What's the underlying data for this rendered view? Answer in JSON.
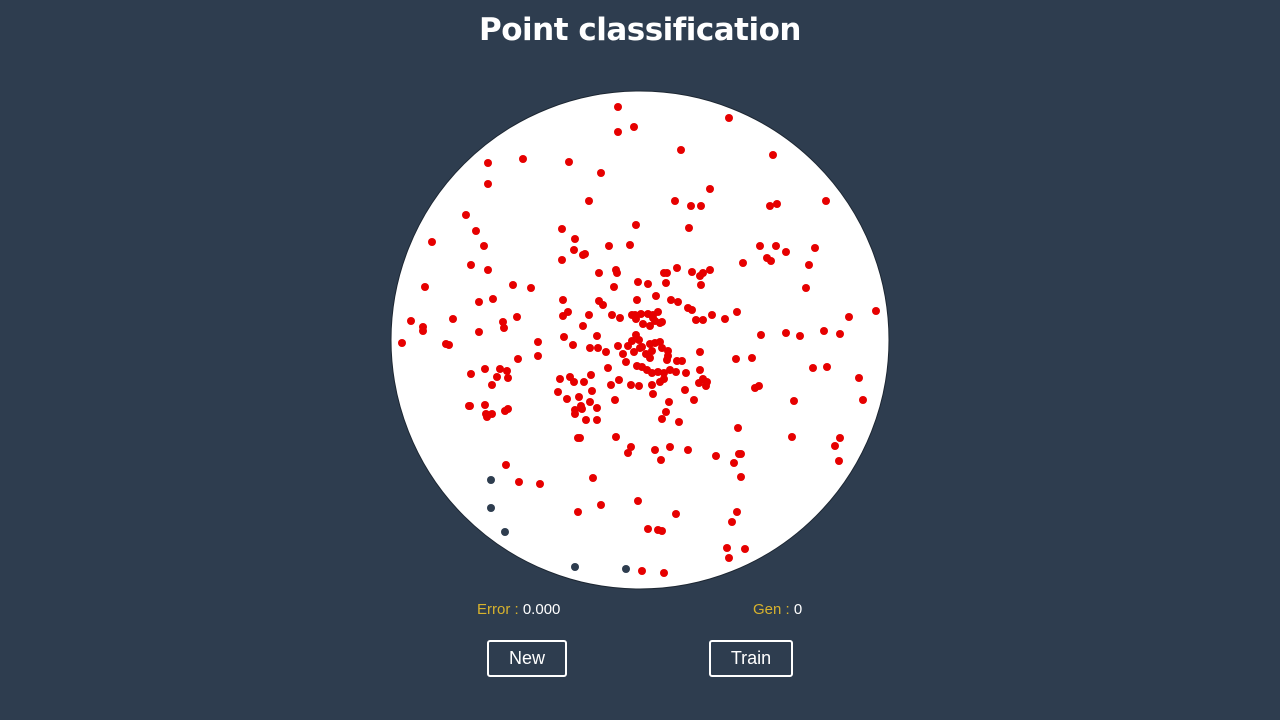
{
  "title": "Point classification",
  "stats": {
    "error_label": "Error :",
    "error_value": "0.000",
    "gen_label": "Gen :",
    "gen_value": "0"
  },
  "buttons": {
    "new_label": "New",
    "train_label": "Train"
  },
  "colors": {
    "background": "#2e3d4f",
    "plot_background": "#ffffff",
    "class_a": "#e60000",
    "class_b": "#2e3d4f",
    "label": "#d7b22d"
  },
  "chart_data": {
    "type": "scatter",
    "xlim": [
      -250,
      250
    ],
    "ylim": [
      -250,
      250
    ],
    "series": [
      {
        "class": "a",
        "color": "#e60000",
        "points": [
          [
            -22,
            233
          ],
          [
            -22,
            208
          ],
          [
            -6,
            213
          ],
          [
            89,
            222
          ],
          [
            41,
            190
          ],
          [
            133,
            185
          ],
          [
            -152,
            177
          ],
          [
            -117,
            181
          ],
          [
            -71,
            178
          ],
          [
            -39,
            167
          ],
          [
            -152,
            156
          ],
          [
            70,
            151
          ],
          [
            -51,
            139
          ],
          [
            35,
            139
          ],
          [
            51,
            134
          ],
          [
            61,
            134
          ],
          [
            130,
            134
          ],
          [
            137,
            136
          ],
          [
            186,
            139
          ],
          [
            -174,
            125
          ],
          [
            -164,
            109
          ],
          [
            -78,
            111
          ],
          [
            -4,
            115
          ],
          [
            49,
            112
          ],
          [
            -208,
            98
          ],
          [
            -156,
            94
          ],
          [
            -65,
            101
          ],
          [
            -31,
            94
          ],
          [
            -10,
            95
          ],
          [
            -66,
            90
          ],
          [
            -57,
            85
          ],
          [
            120,
            94
          ],
          [
            136,
            94
          ],
          [
            146,
            88
          ],
          [
            175,
            92
          ],
          [
            -169,
            75
          ],
          [
            -78,
            80
          ],
          [
            -55,
            86
          ],
          [
            103,
            77
          ],
          [
            127,
            82
          ],
          [
            131,
            79
          ],
          [
            169,
            75
          ],
          [
            -152,
            70
          ],
          [
            -24,
            70
          ],
          [
            -23,
            67
          ],
          [
            24,
            67
          ],
          [
            27,
            67
          ],
          [
            37,
            72
          ],
          [
            52,
            68
          ],
          [
            63,
            67
          ],
          [
            70,
            70
          ],
          [
            -41,
            67
          ],
          [
            -2,
            58
          ],
          [
            60,
            64
          ],
          [
            61,
            55
          ],
          [
            -215,
            53
          ],
          [
            -127,
            55
          ],
          [
            -109,
            52
          ],
          [
            -26,
            53
          ],
          [
            8,
            56
          ],
          [
            26,
            57
          ],
          [
            166,
            52
          ],
          [
            -161,
            38
          ],
          [
            -147,
            41
          ],
          [
            -77,
            40
          ],
          [
            -41,
            39
          ],
          [
            -37,
            35
          ],
          [
            -3,
            40
          ],
          [
            16,
            44
          ],
          [
            31,
            40
          ],
          [
            38,
            38
          ],
          [
            48,
            32
          ],
          [
            52,
            30
          ],
          [
            -72,
            28
          ],
          [
            -51,
            25
          ],
          [
            -5,
            25
          ],
          [
            13,
            25
          ],
          [
            18,
            28
          ],
          [
            56,
            20
          ],
          [
            -229,
            19
          ],
          [
            -137,
            18
          ],
          [
            -123,
            23
          ],
          [
            -77,
            24
          ],
          [
            -28,
            25
          ],
          [
            -20,
            22
          ],
          [
            -8,
            25
          ],
          [
            1,
            26
          ],
          [
            8,
            26
          ],
          [
            13,
            22
          ],
          [
            20,
            17
          ],
          [
            -217,
            13
          ],
          [
            -217,
            9
          ],
          [
            -187,
            21
          ],
          [
            -161,
            8
          ],
          [
            -136,
            12
          ],
          [
            -57,
            14
          ],
          [
            -4,
            21
          ],
          [
            3,
            16
          ],
          [
            10,
            14
          ],
          [
            15,
            19
          ],
          [
            22,
            18
          ],
          [
            63,
            20
          ],
          [
            85,
            21
          ],
          [
            97,
            28
          ],
          [
            72,
            25
          ],
          [
            121,
            5
          ],
          [
            146,
            7
          ],
          [
            160,
            4
          ],
          [
            184,
            9
          ],
          [
            209,
            23
          ],
          [
            236,
            29
          ],
          [
            -76,
            3
          ],
          [
            -67,
            -5
          ],
          [
            -42,
            -8
          ],
          [
            -4,
            5
          ],
          [
            -1,
            0
          ],
          [
            2,
            -7
          ],
          [
            10,
            -4
          ],
          [
            15,
            -3
          ],
          [
            22,
            -8
          ],
          [
            28,
            -16
          ],
          [
            -238,
            -3
          ],
          [
            -194,
            -4
          ],
          [
            -191,
            -5
          ],
          [
            -102,
            -2
          ],
          [
            -43,
            4
          ],
          [
            -50,
            -8
          ],
          [
            -34,
            -12
          ],
          [
            -22,
            -6
          ],
          [
            -17,
            -14
          ],
          [
            -12,
            -6
          ],
          [
            -8,
            -1
          ],
          [
            -6,
            -12
          ],
          [
            0,
            -8
          ],
          [
            6,
            -14
          ],
          [
            10,
            -18
          ],
          [
            12,
            -11
          ],
          [
            20,
            -2
          ],
          [
            28,
            -11
          ],
          [
            37,
            -21
          ],
          [
            200,
            6
          ],
          [
            60,
            -12
          ],
          [
            -102,
            -16
          ],
          [
            -122,
            -19
          ],
          [
            2,
            -27
          ],
          [
            -3,
            -26
          ],
          [
            7,
            -30
          ],
          [
            27,
            -20
          ],
          [
            42,
            -21
          ],
          [
            -155,
            -29
          ],
          [
            -140,
            -29
          ],
          [
            -133,
            -31
          ],
          [
            -32,
            -28
          ],
          [
            -14,
            -22
          ],
          [
            12,
            -33
          ],
          [
            18,
            -32
          ],
          [
            24,
            -33
          ],
          [
            30,
            -30
          ],
          [
            36,
            -32
          ],
          [
            46,
            -33
          ],
          [
            60,
            -30
          ],
          [
            96,
            -19
          ],
          [
            112,
            -18
          ],
          [
            173,
            -28
          ],
          [
            187,
            -27
          ],
          [
            -169,
            -34
          ],
          [
            -143,
            -37
          ],
          [
            -132,
            -38
          ],
          [
            -49,
            -35
          ],
          [
            -70,
            -37
          ],
          [
            -66,
            -42
          ],
          [
            -56,
            -42
          ],
          [
            -29,
            -45
          ],
          [
            -9,
            -45
          ],
          [
            -1,
            -46
          ],
          [
            12,
            -45
          ],
          [
            20,
            -42
          ],
          [
            24,
            -39
          ],
          [
            59,
            -43
          ],
          [
            63,
            -39
          ],
          [
            67,
            -42
          ],
          [
            -148,
            -45
          ],
          [
            -80,
            -39
          ],
          [
            -82,
            -52
          ],
          [
            -48,
            -51
          ],
          [
            -21,
            -40
          ],
          [
            13,
            -54
          ],
          [
            45,
            -50
          ],
          [
            66,
            -46
          ],
          [
            -155,
            -65
          ],
          [
            -50,
            -62
          ],
          [
            -61,
            -57
          ],
          [
            -43,
            -68
          ],
          [
            -73,
            -59
          ],
          [
            -59,
            -66
          ],
          [
            -148,
            -74
          ],
          [
            -132,
            -69
          ],
          [
            -170,
            -66
          ],
          [
            -171,
            -66
          ],
          [
            -135,
            -71
          ],
          [
            -65,
            -70
          ],
          [
            -58,
            -69
          ],
          [
            29,
            -62
          ],
          [
            54,
            -60
          ],
          [
            115,
            -48
          ],
          [
            119,
            -46
          ],
          [
            26,
            -72
          ],
          [
            -25,
            -60
          ],
          [
            -153,
            -77
          ],
          [
            -154,
            -74
          ],
          [
            -43,
            -80
          ],
          [
            -65,
            -74
          ],
          [
            -54,
            -80
          ],
          [
            22,
            -79
          ],
          [
            39,
            -82
          ],
          [
            98,
            -88
          ],
          [
            154,
            -61
          ],
          [
            -24,
            -97
          ],
          [
            -62,
            -98
          ],
          [
            -60,
            -98
          ],
          [
            -9,
            -107
          ],
          [
            15,
            -110
          ],
          [
            30,
            -107
          ],
          [
            48,
            -110
          ],
          [
            99,
            -114
          ],
          [
            152,
            -97
          ],
          [
            200,
            -98
          ],
          [
            195,
            -106
          ],
          [
            219,
            -38
          ],
          [
            223,
            -60
          ],
          [
            -134,
            -125
          ],
          [
            -121,
            -142
          ],
          [
            -100,
            -144
          ],
          [
            -47,
            -138
          ],
          [
            -12,
            -113
          ],
          [
            21,
            -120
          ],
          [
            76,
            -116
          ],
          [
            101,
            -114
          ],
          [
            94,
            -123
          ],
          [
            101,
            -137
          ],
          [
            199,
            -121
          ],
          [
            -2,
            -161
          ],
          [
            -39,
            -165
          ],
          [
            -62,
            -172
          ],
          [
            36,
            -174
          ],
          [
            97,
            -172
          ],
          [
            92,
            -182
          ],
          [
            8,
            -189
          ],
          [
            22,
            -191
          ],
          [
            18,
            -190
          ],
          [
            87,
            -208
          ],
          [
            89,
            -218
          ],
          [
            105,
            -209
          ],
          [
            2,
            -231
          ],
          [
            24,
            -233
          ]
        ]
      },
      {
        "class": "b",
        "color": "#2e3d4f",
        "points": [
          [
            -149,
            -140
          ],
          [
            -149,
            -168
          ],
          [
            -135,
            -192
          ],
          [
            -65,
            -227
          ],
          [
            -14,
            -229
          ]
        ]
      }
    ]
  }
}
